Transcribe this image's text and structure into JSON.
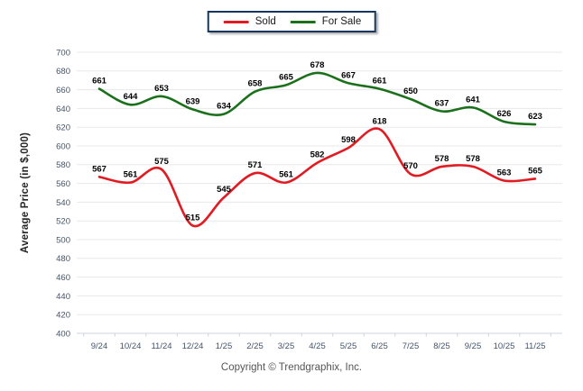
{
  "legend": {
    "border_color": "#17365d",
    "items": [
      {
        "label": "Sold",
        "color": "#e11b22"
      },
      {
        "label": "For Sale",
        "color": "#1b701b"
      }
    ]
  },
  "footer": {
    "copyright": "Copyright © Trendgraphix, Inc."
  },
  "chart_data": {
    "type": "line",
    "title": "",
    "xlabel": "",
    "ylabel": "Average Price (in $,000)",
    "categories": [
      "9/24",
      "10/24",
      "11/24",
      "12/24",
      "1/25",
      "2/25",
      "3/25",
      "4/25",
      "5/25",
      "6/25",
      "7/25",
      "8/25",
      "9/25",
      "10/25",
      "11/25"
    ],
    "series": [
      {
        "name": "Sold",
        "color": "#e11b22",
        "values": [
          567,
          561,
          575,
          515,
          545,
          571,
          561,
          582,
          598,
          618,
          570,
          578,
          578,
          563,
          565
        ]
      },
      {
        "name": "For Sale",
        "color": "#1b701b",
        "values": [
          661,
          644,
          653,
          639,
          634,
          658,
          665,
          678,
          667,
          661,
          650,
          637,
          641,
          626,
          623
        ]
      }
    ],
    "ylim": [
      400,
      700
    ],
    "ytick_step": 20,
    "grid": true,
    "smooth": true,
    "data_labels": true,
    "legend_position": "top-center"
  }
}
